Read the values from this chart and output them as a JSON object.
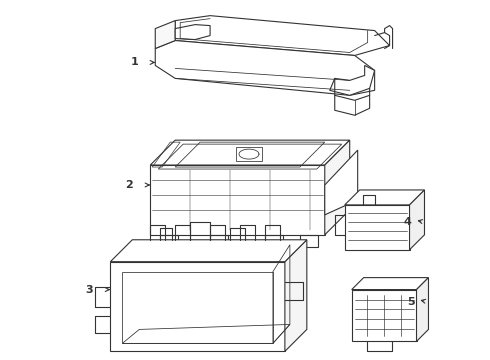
{
  "background_color": "#ffffff",
  "line_color": "#333333",
  "line_width": 0.8,
  "label_fontsize": 8,
  "figsize": [
    4.9,
    3.6
  ],
  "dpi": 100
}
